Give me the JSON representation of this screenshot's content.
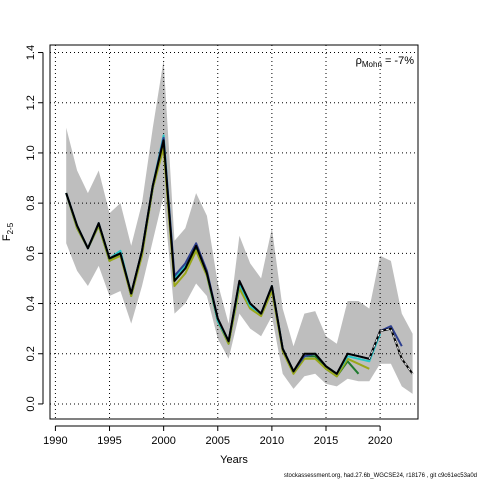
{
  "chart_data": {
    "type": "line",
    "xlabel": "Years",
    "ylabel_main": "F",
    "ylabel_sub": "2-5",
    "xlim": [
      1989.5,
      2023.5
    ],
    "ylim": [
      -0.06,
      1.43
    ],
    "xticks": [
      1990,
      1995,
      2000,
      2005,
      2010,
      2015,
      2020
    ],
    "yticks": [
      0.0,
      0.2,
      0.4,
      0.6,
      0.8,
      1.0,
      1.2,
      1.4
    ],
    "ytick_labels": [
      "0.0",
      "0.2",
      "0.4",
      "0.6",
      "0.8",
      "1.0",
      "1.2",
      "1.4"
    ],
    "grid": true,
    "annotation": {
      "rho_symbol": "ρ",
      "rho_sub": "Mohn",
      "rho_value": " = -7%"
    },
    "footer": "stockassessment.org, had.27.6b_WGCSE24, r18176 , git c9c61ec53a0d",
    "band_color": "#bebebe",
    "confidence_band": {
      "x": [
        1991,
        1992,
        1993,
        1994,
        1995,
        1996,
        1997,
        1998,
        1999,
        2000,
        2001,
        2002,
        2003,
        2004,
        2005,
        2006,
        2007,
        2008,
        2009,
        2010,
        2011,
        2012,
        2013,
        2014,
        2015,
        2016,
        2017,
        2018,
        2019,
        2020,
        2021,
        2022,
        2023
      ],
      "upper": [
        1.1,
        0.93,
        0.84,
        0.93,
        0.76,
        0.8,
        0.63,
        0.8,
        1.1,
        1.37,
        0.65,
        0.7,
        0.84,
        0.75,
        0.48,
        0.32,
        0.67,
        0.56,
        0.5,
        0.7,
        0.38,
        0.23,
        0.36,
        0.37,
        0.27,
        0.24,
        0.41,
        0.41,
        0.38,
        0.59,
        0.57,
        0.36,
        0.28
      ],
      "lower": [
        0.64,
        0.53,
        0.47,
        0.55,
        0.43,
        0.45,
        0.32,
        0.47,
        0.65,
        0.83,
        0.36,
        0.4,
        0.48,
        0.43,
        0.26,
        0.18,
        0.36,
        0.3,
        0.27,
        0.35,
        0.12,
        0.06,
        0.11,
        0.12,
        0.08,
        0.07,
        0.1,
        0.09,
        0.09,
        0.16,
        0.16,
        0.07,
        0.04
      ]
    },
    "series": [
      {
        "color": "#1f7a2e",
        "dashed": false,
        "x": [
          1991,
          1992,
          1993,
          1994,
          1995,
          1996,
          1997,
          1998,
          1999,
          2000,
          2001,
          2002,
          2003,
          2004,
          2005,
          2006,
          2007,
          2008,
          2009,
          2010,
          2011,
          2012,
          2013,
          2014,
          2015,
          2016,
          2017,
          2018
        ],
        "values": [
          0.84,
          0.7,
          0.62,
          0.71,
          0.57,
          0.6,
          0.43,
          0.6,
          0.86,
          1.03,
          0.49,
          0.54,
          0.62,
          0.52,
          0.33,
          0.24,
          0.48,
          0.39,
          0.36,
          0.46,
          0.22,
          0.13,
          0.19,
          0.19,
          0.14,
          0.11,
          0.17,
          0.12
        ]
      },
      {
        "color": "#9aa71a",
        "dashed": false,
        "x": [
          1991,
          1992,
          1993,
          1994,
          1995,
          1996,
          1997,
          1998,
          1999,
          2000,
          2001,
          2002,
          2003,
          2004,
          2005,
          2006,
          2007,
          2008,
          2009,
          2010,
          2011,
          2012,
          2013,
          2014,
          2015,
          2016,
          2017,
          2018,
          2019
        ],
        "values": [
          0.84,
          0.7,
          0.62,
          0.71,
          0.57,
          0.59,
          0.43,
          0.59,
          0.86,
          1.02,
          0.47,
          0.52,
          0.61,
          0.51,
          0.33,
          0.24,
          0.46,
          0.38,
          0.35,
          0.45,
          0.21,
          0.12,
          0.18,
          0.18,
          0.14,
          0.11,
          0.18,
          0.16,
          0.14
        ]
      },
      {
        "color": "#26c6c6",
        "dashed": false,
        "x": [
          1991,
          1992,
          1993,
          1994,
          1995,
          1996,
          1997,
          1998,
          1999,
          2000,
          2001,
          2002,
          2003,
          2004,
          2005,
          2006,
          2007,
          2008,
          2009,
          2010,
          2011,
          2012,
          2013,
          2014,
          2015,
          2016,
          2017,
          2018,
          2019,
          2020
        ],
        "values": [
          0.84,
          0.71,
          0.62,
          0.72,
          0.58,
          0.61,
          0.44,
          0.61,
          0.87,
          1.07,
          0.5,
          0.55,
          0.63,
          0.52,
          0.33,
          0.25,
          0.48,
          0.39,
          0.36,
          0.47,
          0.22,
          0.13,
          0.19,
          0.2,
          0.15,
          0.12,
          0.19,
          0.18,
          0.17,
          0.28
        ]
      },
      {
        "color": "#2c3e8f",
        "dashed": false,
        "x": [
          1991,
          1992,
          1993,
          1994,
          1995,
          1996,
          1997,
          1998,
          1999,
          2000,
          2001,
          2002,
          2003,
          2004,
          2005,
          2006,
          2007,
          2008,
          2009,
          2010,
          2011,
          2012,
          2013,
          2014,
          2015,
          2016,
          2017,
          2018,
          2019,
          2020,
          2021,
          2022
        ],
        "values": [
          0.84,
          0.71,
          0.62,
          0.72,
          0.58,
          0.6,
          0.44,
          0.61,
          0.87,
          1.06,
          0.51,
          0.56,
          0.64,
          0.53,
          0.34,
          0.25,
          0.49,
          0.4,
          0.36,
          0.47,
          0.22,
          0.13,
          0.19,
          0.2,
          0.15,
          0.12,
          0.2,
          0.19,
          0.18,
          0.29,
          0.31,
          0.23
        ]
      },
      {
        "color": "#000000",
        "dashed": false,
        "x": [
          1991,
          1992,
          1993,
          1994,
          1995,
          1996,
          1997,
          1998,
          1999,
          2000,
          2001,
          2002,
          2003,
          2004,
          2005,
          2006,
          2007,
          2008,
          2009,
          2010,
          2011,
          2012,
          2013,
          2014,
          2015,
          2016,
          2017,
          2018,
          2019,
          2020,
          2021,
          2022,
          2023
        ],
        "values": [
          0.84,
          0.71,
          0.62,
          0.72,
          0.58,
          0.6,
          0.44,
          0.61,
          0.87,
          1.05,
          0.49,
          0.54,
          0.63,
          0.52,
          0.34,
          0.25,
          0.49,
          0.4,
          0.36,
          0.47,
          0.22,
          0.13,
          0.2,
          0.2,
          0.15,
          0.12,
          0.2,
          0.19,
          0.18,
          0.29,
          0.3,
          0.18,
          0.12
        ]
      },
      {
        "color": "#ffffff",
        "dashed": true,
        "x": [
          2019,
          2020,
          2021,
          2022,
          2023
        ],
        "values": [
          0.18,
          0.29,
          0.3,
          0.18,
          0.12
        ]
      }
    ]
  }
}
